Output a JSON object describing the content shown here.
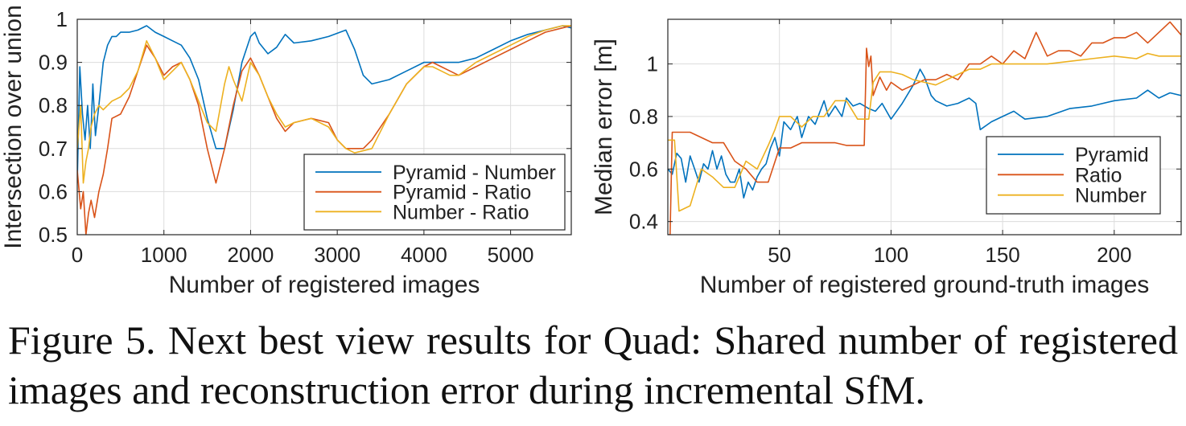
{
  "caption": "Figure 5. Next best view results for Quad: Shared number of registered images and reconstruction error during incremental SfM.",
  "chart_data": [
    {
      "type": "line",
      "xlabel": "Number of registered images",
      "ylabel": "Intersection over union",
      "xlim": [
        0,
        5700
      ],
      "ylim": [
        0.5,
        1
      ],
      "xticks": [
        0,
        1000,
        2000,
        3000,
        4000,
        5000
      ],
      "yticks": [
        0.5,
        0.6,
        0.7,
        0.8,
        0.9,
        1
      ],
      "ytick_labels": [
        "0.5",
        "0.6",
        "0.7",
        "0.8",
        "0.9",
        "1"
      ],
      "grid": true,
      "legend_position": "bottom-right",
      "series": [
        {
          "name": "Pyramid - Number",
          "color": "#0072BD",
          "x": [
            0,
            30,
            60,
            90,
            120,
            150,
            180,
            210,
            250,
            300,
            350,
            400,
            450,
            500,
            600,
            700,
            800,
            900,
            1000,
            1100,
            1200,
            1300,
            1400,
            1500,
            1600,
            1700,
            1800,
            1900,
            2000,
            2050,
            2100,
            2200,
            2300,
            2400,
            2500,
            2700,
            2900,
            3100,
            3200,
            3300,
            3400,
            3600,
            3800,
            4000,
            4200,
            4400,
            4600,
            4800,
            5000,
            5200,
            5400,
            5600,
            5700
          ],
          "y": [
            0.62,
            0.89,
            0.78,
            0.72,
            0.8,
            0.7,
            0.85,
            0.73,
            0.8,
            0.9,
            0.94,
            0.96,
            0.96,
            0.97,
            0.97,
            0.975,
            0.985,
            0.97,
            0.96,
            0.95,
            0.94,
            0.91,
            0.86,
            0.77,
            0.7,
            0.7,
            0.79,
            0.9,
            0.96,
            0.97,
            0.945,
            0.92,
            0.935,
            0.965,
            0.945,
            0.95,
            0.96,
            0.975,
            0.93,
            0.87,
            0.85,
            0.86,
            0.88,
            0.9,
            0.9,
            0.9,
            0.91,
            0.93,
            0.95,
            0.965,
            0.975,
            0.985,
            0.98
          ]
        },
        {
          "name": "Pyramid - Ratio",
          "color": "#D95319",
          "x": [
            0,
            40,
            70,
            100,
            130,
            160,
            200,
            250,
            300,
            350,
            400,
            500,
            600,
            700,
            800,
            900,
            1000,
            1100,
            1200,
            1300,
            1400,
            1500,
            1600,
            1700,
            1800,
            1900,
            2000,
            2100,
            2200,
            2300,
            2400,
            2500,
            2700,
            2900,
            3000,
            3100,
            3200,
            3300,
            3400,
            3600,
            3800,
            4000,
            4100,
            4200,
            4300,
            4400,
            4600,
            4800,
            5000,
            5200,
            5400,
            5600,
            5700
          ],
          "y": [
            0.65,
            0.56,
            0.6,
            0.5,
            0.55,
            0.58,
            0.54,
            0.6,
            0.64,
            0.7,
            0.77,
            0.78,
            0.82,
            0.88,
            0.94,
            0.91,
            0.87,
            0.89,
            0.9,
            0.86,
            0.8,
            0.7,
            0.62,
            0.7,
            0.8,
            0.88,
            0.91,
            0.87,
            0.82,
            0.77,
            0.74,
            0.76,
            0.77,
            0.76,
            0.72,
            0.7,
            0.7,
            0.7,
            0.72,
            0.78,
            0.85,
            0.89,
            0.9,
            0.89,
            0.88,
            0.87,
            0.89,
            0.91,
            0.93,
            0.95,
            0.97,
            0.98,
            0.985
          ]
        },
        {
          "name": "Number - Ratio",
          "color": "#EDB120",
          "x": [
            0,
            40,
            70,
            100,
            130,
            160,
            200,
            250,
            300,
            350,
            400,
            500,
            600,
            700,
            800,
            900,
            1000,
            1100,
            1200,
            1300,
            1400,
            1500,
            1600,
            1700,
            1750,
            1800,
            1900,
            2000,
            2100,
            2200,
            2300,
            2400,
            2500,
            2700,
            2900,
            3000,
            3100,
            3200,
            3400,
            3600,
            3800,
            4000,
            4100,
            4200,
            4300,
            4400,
            4600,
            4800,
            5000,
            5200,
            5400,
            5600,
            5700
          ],
          "y": [
            0.7,
            0.8,
            0.62,
            0.67,
            0.7,
            0.75,
            0.78,
            0.8,
            0.79,
            0.8,
            0.81,
            0.82,
            0.84,
            0.88,
            0.95,
            0.91,
            0.86,
            0.88,
            0.9,
            0.86,
            0.81,
            0.76,
            0.74,
            0.85,
            0.89,
            0.86,
            0.81,
            0.9,
            0.87,
            0.82,
            0.78,
            0.75,
            0.76,
            0.77,
            0.75,
            0.72,
            0.7,
            0.69,
            0.7,
            0.78,
            0.85,
            0.89,
            0.89,
            0.88,
            0.87,
            0.87,
            0.9,
            0.92,
            0.94,
            0.96,
            0.975,
            0.985,
            0.985
          ]
        }
      ]
    },
    {
      "type": "line",
      "xlabel": "Number of registered ground-truth images",
      "ylabel": "Median error [m]",
      "xlim": [
        0,
        230
      ],
      "ylim": [
        0.35,
        1.17
      ],
      "xticks": [
        50,
        100,
        150,
        200
      ],
      "yticks": [
        0.4,
        0.6,
        0.8,
        1
      ],
      "ytick_labels": [
        "0.4",
        "0.6",
        "0.8",
        "1"
      ],
      "grid": true,
      "legend_position": "bottom-right",
      "series": [
        {
          "name": "Pyramid",
          "color": "#0072BD",
          "x": [
            0,
            2,
            4,
            6,
            8,
            10,
            12,
            14,
            16,
            18,
            20,
            22,
            24,
            26,
            28,
            30,
            32,
            34,
            36,
            38,
            40,
            42,
            44,
            46,
            48,
            50,
            52,
            55,
            58,
            60,
            63,
            66,
            70,
            72,
            75,
            78,
            80,
            83,
            86,
            90,
            93,
            96,
            100,
            105,
            110,
            113,
            115,
            118,
            120,
            125,
            130,
            135,
            138,
            140,
            145,
            150,
            155,
            160,
            170,
            180,
            190,
            200,
            210,
            215,
            220,
            225,
            230
          ],
          "y": [
            0.6,
            0.58,
            0.66,
            0.64,
            0.55,
            0.65,
            0.6,
            0.55,
            0.62,
            0.6,
            0.67,
            0.6,
            0.65,
            0.58,
            0.55,
            0.55,
            0.6,
            0.49,
            0.55,
            0.52,
            0.57,
            0.6,
            0.62,
            0.68,
            0.72,
            0.65,
            0.78,
            0.75,
            0.8,
            0.72,
            0.8,
            0.77,
            0.86,
            0.8,
            0.84,
            0.8,
            0.87,
            0.84,
            0.85,
            0.83,
            0.82,
            0.85,
            0.79,
            0.85,
            0.92,
            0.98,
            0.95,
            0.88,
            0.86,
            0.84,
            0.85,
            0.87,
            0.85,
            0.75,
            0.78,
            0.8,
            0.82,
            0.79,
            0.8,
            0.83,
            0.84,
            0.86,
            0.87,
            0.9,
            0.87,
            0.89,
            0.88
          ]
        },
        {
          "name": "Ratio",
          "color": "#D95319",
          "x": [
            0,
            1,
            2,
            3,
            4,
            5,
            10,
            20,
            25,
            30,
            35,
            40,
            45,
            50,
            55,
            60,
            65,
            70,
            75,
            80,
            85,
            88,
            89,
            90,
            91,
            92,
            95,
            98,
            100,
            105,
            110,
            115,
            120,
            125,
            130,
            135,
            140,
            145,
            150,
            155,
            160,
            165,
            170,
            175,
            180,
            185,
            190,
            195,
            200,
            205,
            210,
            215,
            220,
            225,
            230
          ],
          "y": [
            0.35,
            0.35,
            0.74,
            0.74,
            0.74,
            0.74,
            0.74,
            0.7,
            0.7,
            0.63,
            0.6,
            0.55,
            0.55,
            0.68,
            0.68,
            0.7,
            0.7,
            0.7,
            0.7,
            0.69,
            0.69,
            0.69,
            1.06,
            0.99,
            1.03,
            0.88,
            0.95,
            0.9,
            0.93,
            0.9,
            0.92,
            0.94,
            0.94,
            0.96,
            0.94,
            1.0,
            1.0,
            1.03,
            1.0,
            1.05,
            1.02,
            1.12,
            1.03,
            1.05,
            1.05,
            1.03,
            1.08,
            1.08,
            1.1,
            1.1,
            1.12,
            1.08,
            1.12,
            1.16,
            1.11
          ]
        },
        {
          "name": "Number",
          "color": "#EDB120",
          "x": [
            0,
            3,
            5,
            10,
            15,
            20,
            25,
            30,
            35,
            40,
            45,
            48,
            50,
            55,
            60,
            65,
            70,
            75,
            80,
            85,
            90,
            92,
            95,
            100,
            105,
            110,
            115,
            120,
            125,
            130,
            135,
            140,
            145,
            150,
            155,
            160,
            170,
            180,
            190,
            200,
            210,
            215,
            220,
            225,
            230
          ],
          "y": [
            0.71,
            0.71,
            0.44,
            0.46,
            0.6,
            0.57,
            0.53,
            0.53,
            0.63,
            0.6,
            0.69,
            0.75,
            0.8,
            0.8,
            0.76,
            0.8,
            0.8,
            0.86,
            0.86,
            0.79,
            0.79,
            0.93,
            0.97,
            0.97,
            0.96,
            0.94,
            0.93,
            0.92,
            0.94,
            0.96,
            0.98,
            0.98,
            1.0,
            1.0,
            1.0,
            1.0,
            1.0,
            1.01,
            1.02,
            1.03,
            1.02,
            1.04,
            1.03,
            1.03,
            1.03
          ]
        }
      ]
    }
  ]
}
